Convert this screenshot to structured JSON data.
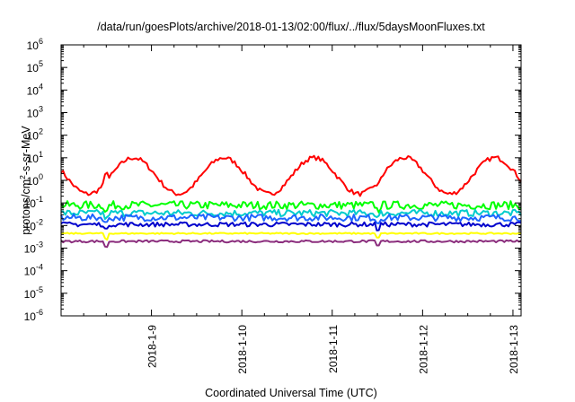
{
  "chart_data": {
    "type": "line",
    "title": "/data/run/goesPlots/archive/2018-01-13/02:00/flux/../flux/5daysMoonFluxes.txt",
    "xlabel": "Coordinated Universal Time (UTC)",
    "ylabel": {
      "pre": "protons/cm",
      "sup": "2",
      "post": "-s-sr-MeV"
    },
    "yscale": "log",
    "ylim_exponent": [
      -6,
      6
    ],
    "y_tick_base": "10",
    "y_tick_exponents": [
      "-6",
      "-5",
      "-4",
      "-3",
      "-2",
      "-1",
      "0",
      "1",
      "2",
      "3",
      "4",
      "5",
      "6"
    ],
    "xlim_days": [
      0,
      5.09
    ],
    "x_tick_labels": [
      "2018-1-9",
      "2018-1-10",
      "2018-1-11",
      "2018-1-12",
      "2018-1-13"
    ],
    "x_tick_positions_days": [
      1,
      2,
      3,
      4,
      5
    ],
    "grid": false,
    "series": [
      {
        "color": "#ff0000",
        "shape": "diurnal",
        "phase": 0.8,
        "min_log": -0.6,
        "max_log": 1.0,
        "noise": 0.1,
        "x_days": [
          0,
          0.5,
          1,
          1.5,
          2,
          2.5,
          3,
          3.5,
          4,
          4.5,
          5,
          5.09
        ],
        "log10_flux": [
          0.55,
          -0.5,
          0.9,
          -0.2,
          0.8,
          -0.6,
          0.7,
          -0.4,
          0.8,
          -0.5,
          0.9,
          0.3
        ]
      },
      {
        "color": "#00ff00",
        "shape": "flat",
        "level_log": -1.1,
        "noise": 0.18,
        "x_days": [
          0,
          1,
          2,
          3,
          4,
          5,
          5.09
        ],
        "log10_flux": [
          -1.1,
          -1.1,
          -1.15,
          -1.1,
          -1.05,
          -1.1,
          -1.05
        ]
      },
      {
        "color": "#00cccc",
        "shape": "flat",
        "level_log": -1.45,
        "noise": 0.15,
        "x_days": [
          0,
          1,
          2,
          3,
          4,
          5,
          5.09
        ],
        "log10_flux": [
          -1.45,
          -1.45,
          -1.5,
          -1.45,
          -1.4,
          -1.45,
          -1.4
        ]
      },
      {
        "color": "#1e64ff",
        "shape": "flat",
        "level_log": -1.65,
        "noise": 0.15,
        "x_days": [
          0,
          1,
          2,
          3,
          4,
          5,
          5.09
        ],
        "log10_flux": [
          -1.65,
          -1.7,
          -1.7,
          -1.65,
          -1.6,
          -1.7,
          -1.65
        ]
      },
      {
        "color": "#0000cc",
        "shape": "flat",
        "level_log": -1.95,
        "noise": 0.1,
        "x_days": [
          0,
          1,
          2,
          3,
          4,
          5,
          5.09
        ],
        "log10_flux": [
          -1.95,
          -1.95,
          -2.0,
          -1.95,
          -1.95,
          -1.95,
          -1.9
        ]
      },
      {
        "color": "#ffff00",
        "shape": "flat",
        "level_log": -2.35,
        "noise": 0.03,
        "x_days": [
          0,
          1,
          2,
          3,
          4,
          5,
          5.09
        ],
        "log10_flux": [
          -2.35,
          -2.35,
          -2.35,
          -2.35,
          -2.35,
          -2.35,
          -2.35
        ]
      },
      {
        "color": "#8b2d7d",
        "shape": "flat",
        "level_log": -2.7,
        "noise": 0.05,
        "x_days": [
          0,
          0.5,
          0.51,
          1,
          2,
          3,
          3.5,
          3.51,
          4,
          5,
          5.09
        ],
        "log10_flux": [
          -2.7,
          -2.7,
          -3.4,
          -2.7,
          -2.7,
          -2.65,
          -2.7,
          -3.0,
          -2.7,
          -2.7,
          -2.7
        ]
      }
    ]
  }
}
